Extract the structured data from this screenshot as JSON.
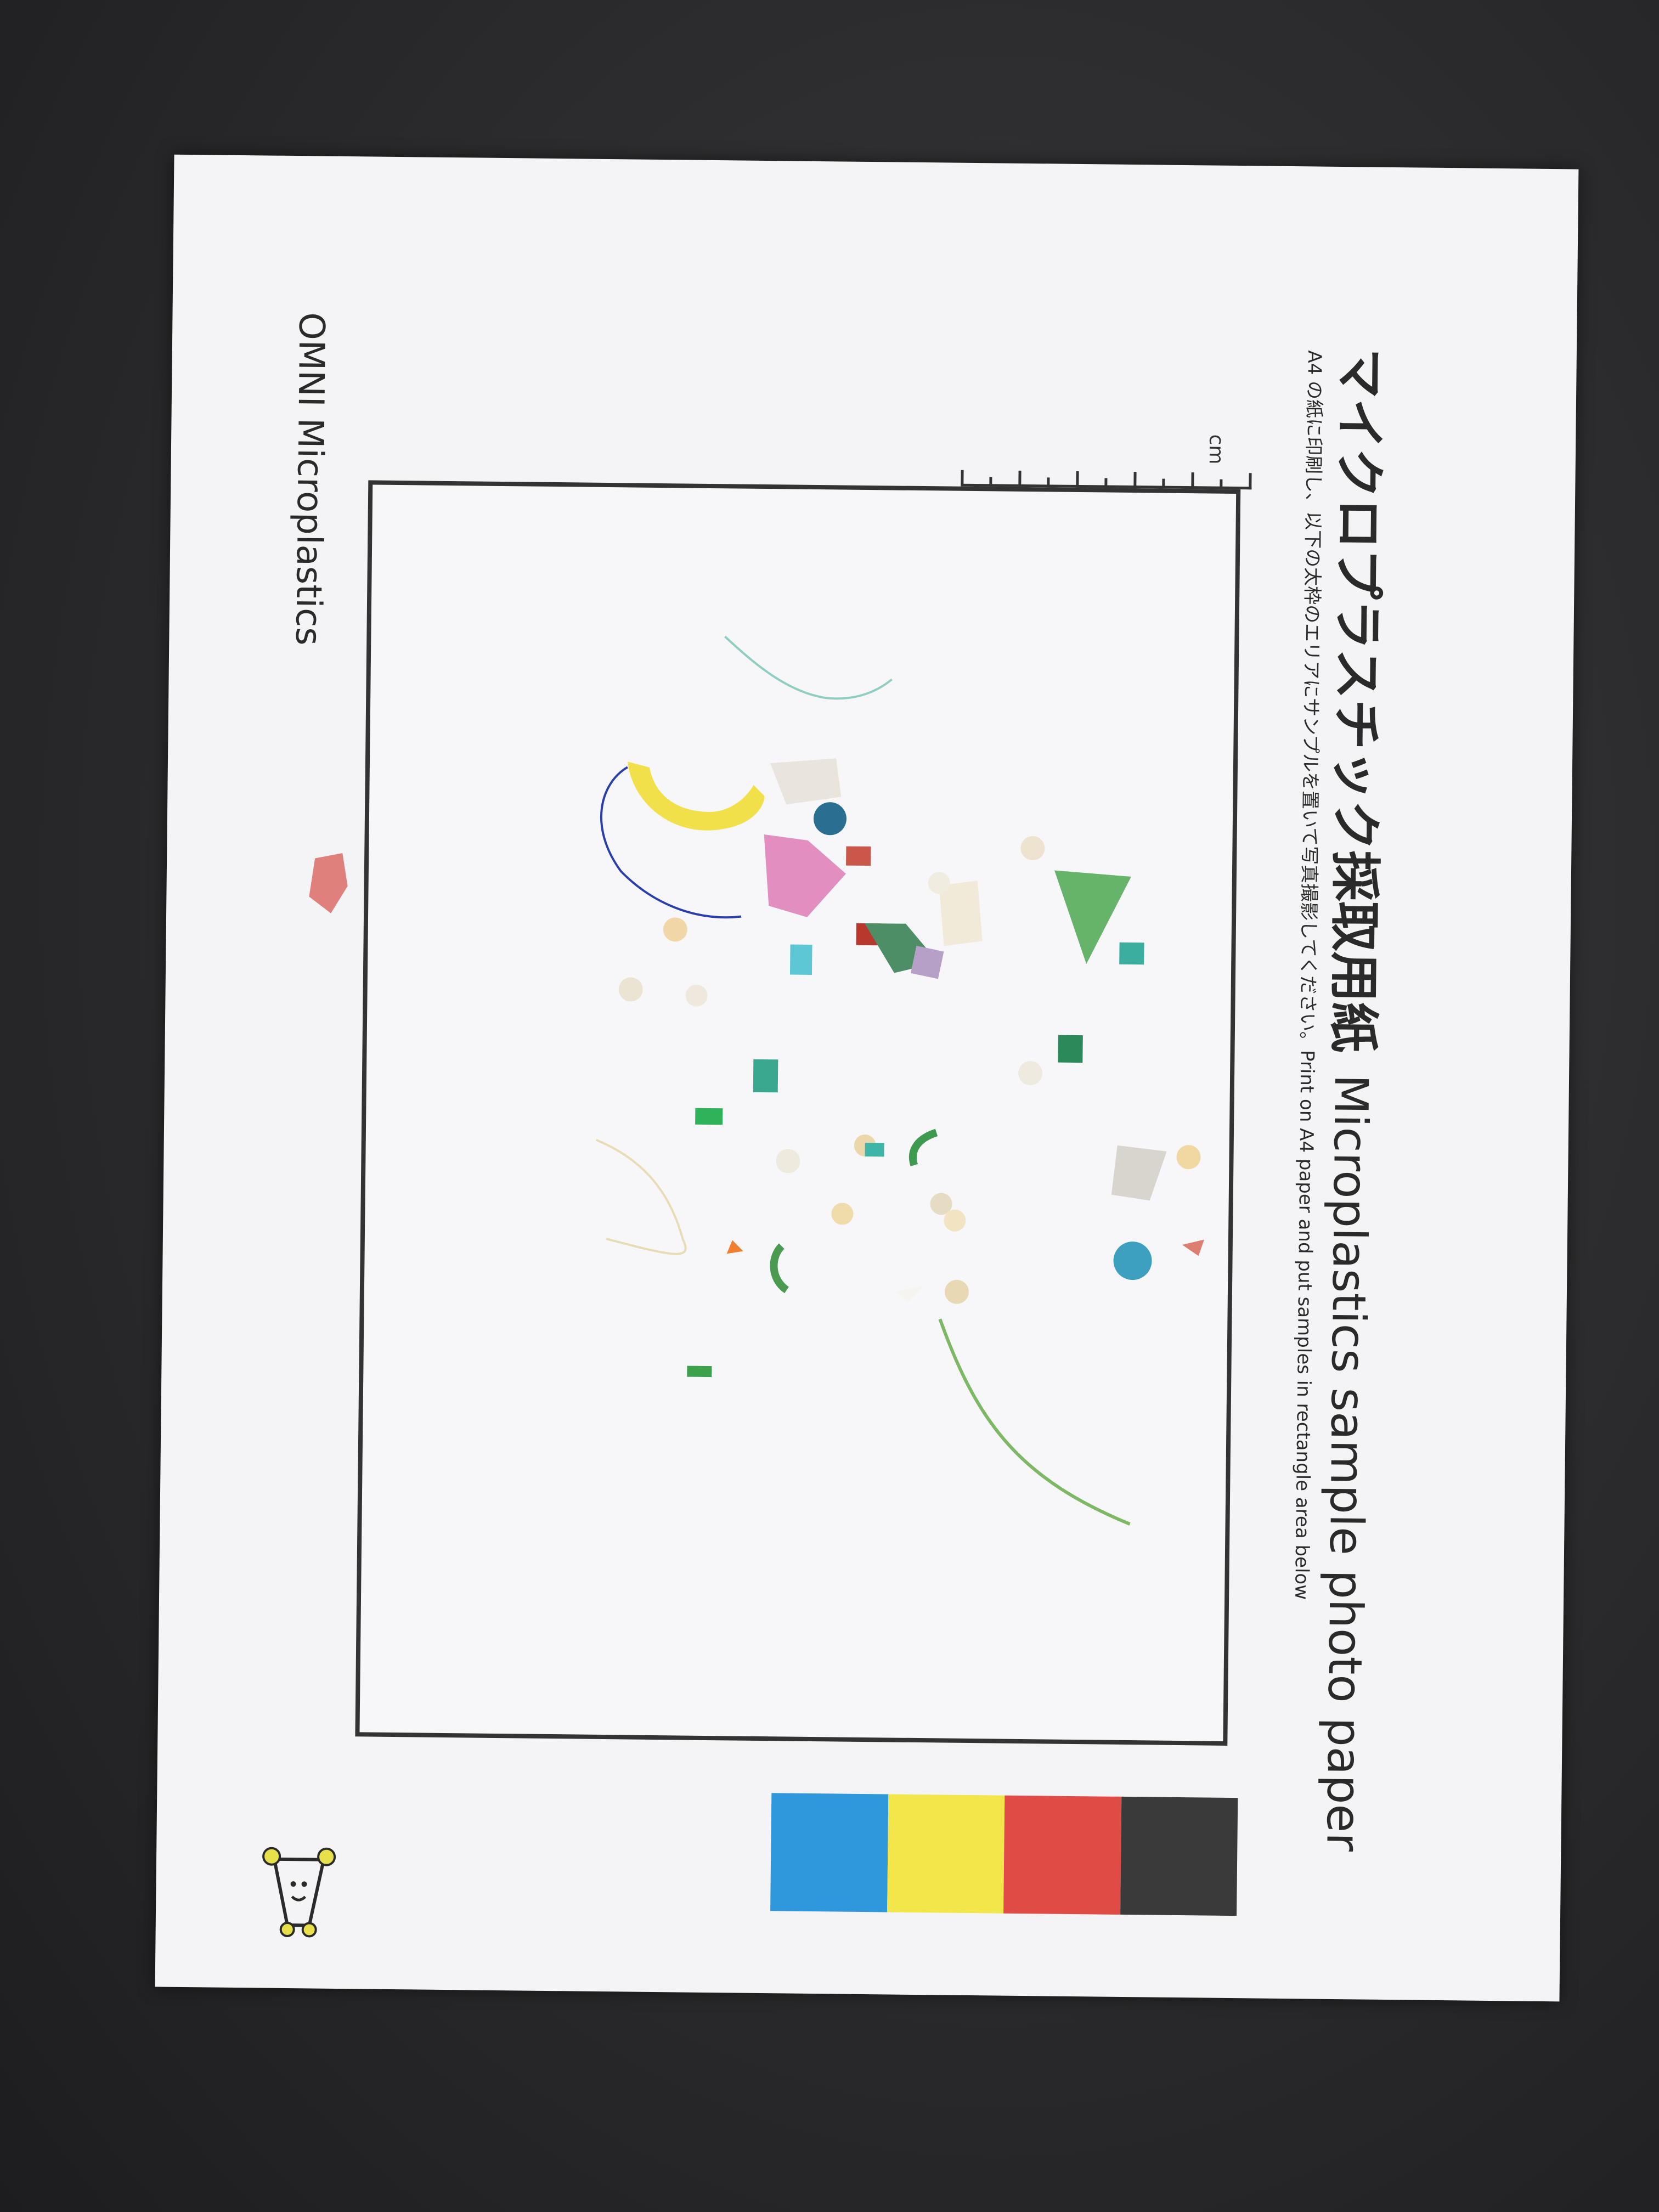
{
  "sheet": {
    "title_jp": "マイクロプラスチック採取用紙",
    "title_en": "Microplastics sample photo paper",
    "instruction": "A4 の紙に印刷し、以下の太枠のエリアにサンプルを置いて写真撮影してください。Print on A4 paper and put samples in rectangle area below",
    "brand": "OMNI Microplastics",
    "ruler_unit": "cm"
  },
  "swatches": [
    {
      "name": "blue",
      "color": "#2f97dc"
    },
    {
      "name": "yellow",
      "color": "#f2e64a"
    },
    {
      "name": "red",
      "color": "#e04b45"
    },
    {
      "name": "black",
      "color": "#3a3a3a"
    }
  ],
  "colors": {
    "background": "#262628",
    "paper": "#f4f4f6",
    "ink": "#2a2a2a",
    "logo_accent": "#e8e04a"
  },
  "icons": {
    "logo": "omni-mascot-icon"
  }
}
